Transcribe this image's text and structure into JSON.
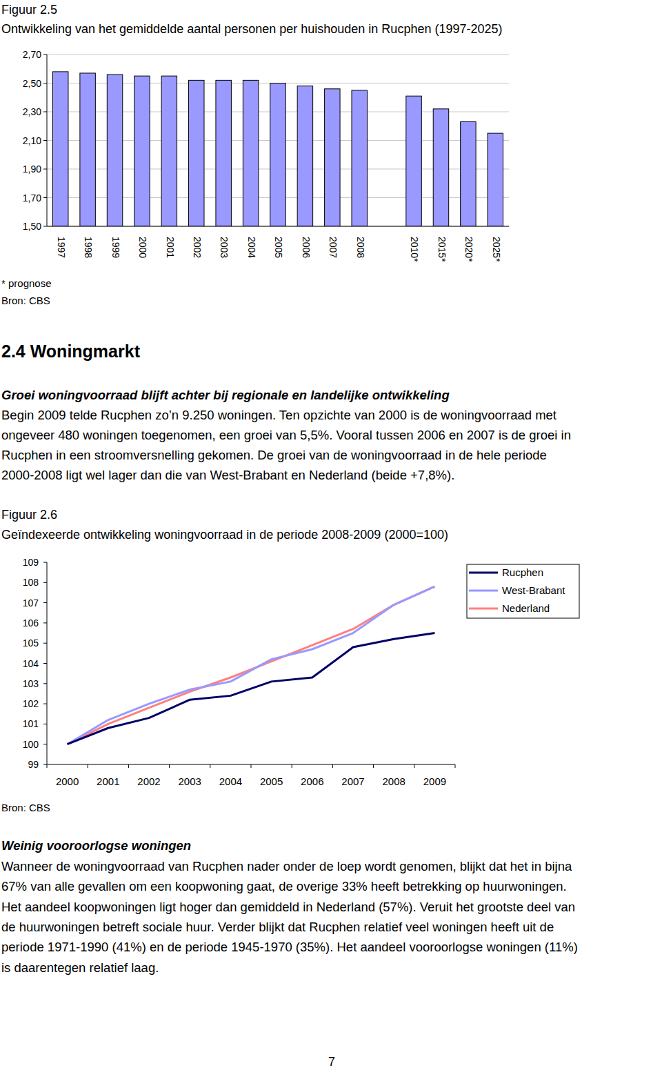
{
  "document": {
    "figure_1": {
      "label": "Figuur 2.5",
      "note": "* prognose",
      "source": "Bron: CBS"
    },
    "section": {
      "heading": "2.4 Woningmarkt",
      "subheading": "Groei woningvoorraad blijft achter bij regionale en landelijke ontwikkeling",
      "lines": [
        "Begin 2009 telde Rucphen zo’n 9.250 woningen. Ten opzichte van 2000 is de woningvoorraad met",
        "ongeveer 480 woningen toegenomen, een groei van 5,5%. Vooral tussen 2006 en 2007 is de groei in",
        "Rucphen in een stroomversnelling gekomen. De groei van de woningvoorraad in de hele periode",
        "2000-2008 ligt wel lager dan die van West-Brabant en Nederland (beide +7,8%)."
      ]
    },
    "figure_2": {
      "label": "Figuur 2.6",
      "source": "Bron: CBS"
    },
    "subsection": {
      "heading": "Weinig vooroorlogse woningen",
      "lines": [
        "Wanneer de woningvoorraad van Rucphen nader onder de loep wordt genomen, blijkt dat het in bijna",
        "67% van alle gevallen om een koopwoning gaat, de overige 33% heeft betrekking op huurwoningen.",
        "Het aandeel koopwoningen ligt hoger dan gemiddeld in Nederland (57%). Veruit het grootste deel van",
        "de huurwoningen betreft sociale huur. Verder blijkt dat Rucphen relatief veel woningen heeft uit de",
        "periode 1971-1990 (41%) en de periode 1945-1970 (35%). Het aandeel vooroorlogse woningen (11%)",
        "is daarentegen relatief laag."
      ]
    },
    "page_number": 7
  },
  "chart_data": [
    {
      "type": "bar",
      "title": "Ontwikkeling van het gemiddelde aantal personen per huishouden in Rucphen (1997-2025)",
      "categories": [
        "1997",
        "1998",
        "1999",
        "2000",
        "2001",
        "2002",
        "2003",
        "2004",
        "2005",
        "2006",
        "2007",
        "2008",
        null,
        "2010*",
        "2015*",
        "2020*",
        "2025*"
      ],
      "values": [
        2.58,
        2.57,
        2.56,
        2.55,
        2.55,
        2.52,
        2.52,
        2.52,
        2.5,
        2.48,
        2.46,
        2.45,
        null,
        2.41,
        2.32,
        2.23,
        2.15
      ],
      "color": "#9999ff",
      "ylim": [
        1.5,
        2.7
      ],
      "yticks": [
        {
          "value": 1.5,
          "label": "1,50"
        },
        {
          "value": 1.7,
          "label": "1,70"
        },
        {
          "value": 1.9,
          "label": "1,90"
        },
        {
          "value": 2.1,
          "label": "2,10"
        },
        {
          "value": 2.3,
          "label": "2,30"
        },
        {
          "value": 2.5,
          "label": "2,50"
        },
        {
          "value": 2.7,
          "label": "2,70"
        }
      ],
      "grid": true
    },
    {
      "type": "line",
      "title": "Geïndexeerde ontwikkeling woningvoorraad in de periode 2008-2009 (2000=100)",
      "categories": [
        "2000",
        "2001",
        "2002",
        "2003",
        "2004",
        "2005",
        "2006",
        "2007",
        "2008",
        "2009"
      ],
      "series": [
        {
          "name": "Rucphen",
          "color": "#000066",
          "values": [
            100.0,
            100.8,
            101.3,
            102.2,
            102.4,
            103.1,
            103.3,
            104.8,
            105.2,
            105.5
          ]
        },
        {
          "name": "West-Brabant",
          "color": "#9999ff",
          "values": [
            100.0,
            101.2,
            102.0,
            102.7,
            103.1,
            104.2,
            104.7,
            105.5,
            106.9,
            107.8
          ]
        },
        {
          "name": "Nederland",
          "color": "#ff8080",
          "values": [
            100.0,
            101.0,
            101.8,
            102.6,
            103.3,
            104.1,
            104.9,
            105.7,
            106.9,
            107.8
          ]
        }
      ],
      "ylim": [
        99,
        109
      ],
      "yticks": [
        99,
        100,
        101,
        102,
        103,
        104,
        105,
        106,
        107,
        108,
        109
      ],
      "grid": false,
      "legend": "upper right"
    }
  ]
}
